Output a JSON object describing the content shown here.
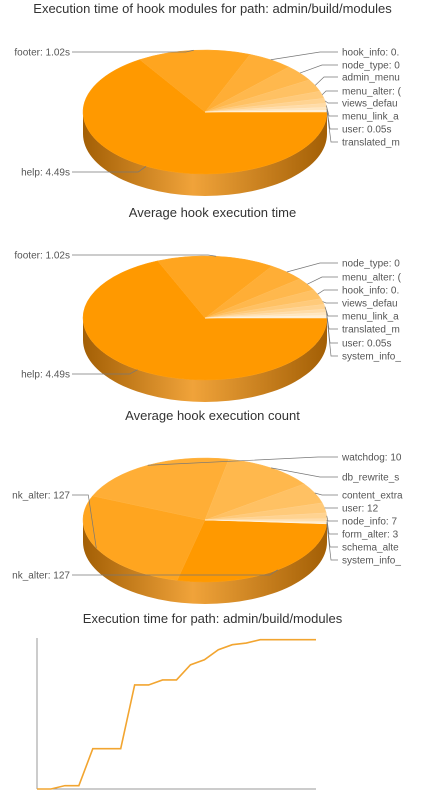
{
  "colors": {
    "base": "#ff9900",
    "side_dark": "#a35f05",
    "side_light": "#f0a33a",
    "line": "#f2a530",
    "axis": "#999999",
    "leader": "#777777"
  },
  "chart_data": [
    {
      "type": "pie",
      "title": "Execution time of hook modules for path: admin/build/modules",
      "slices": [
        {
          "label": "help: 4.49s",
          "value": 4.49
        },
        {
          "label": "footer: 1.02s",
          "value": 1.02
        },
        {
          "label": "hook_info: 0.",
          "value": 0.41
        },
        {
          "label": "node_type: 0",
          "value": 0.29
        },
        {
          "label": "admin_menu",
          "value": 0.22
        },
        {
          "label": "menu_alter: (",
          "value": 0.13
        },
        {
          "label": "views_defau",
          "value": 0.09
        },
        {
          "label": "menu_link_a",
          "value": 0.07
        },
        {
          "label": "user: 0.05s",
          "value": 0.05
        },
        {
          "label": "translated_m",
          "value": 0.03
        }
      ]
    },
    {
      "type": "pie",
      "title": "Average hook execution time",
      "slices": [
        {
          "label": "help: 4.49s",
          "value": 4.49
        },
        {
          "label": "footer: 1.02s",
          "value": 1.02
        },
        {
          "label": "node_type: 0",
          "value": 0.32
        },
        {
          "label": "menu_alter: (",
          "value": 0.22
        },
        {
          "label": "hook_info: 0.",
          "value": 0.16
        },
        {
          "label": "views_defau",
          "value": 0.1
        },
        {
          "label": "menu_link_a",
          "value": 0.08
        },
        {
          "label": "translated_m",
          "value": 0.06
        },
        {
          "label": "user: 0.05s",
          "value": 0.05
        },
        {
          "label": "system_info_",
          "value": 0.04
        }
      ]
    },
    {
      "type": "pie",
      "title": "Average hook execution count",
      "slices": [
        {
          "label": "nk_alter: 127",
          "value": 127
        },
        {
          "label": "nk_alter: 127",
          "value": 127
        },
        {
          "label": "watchdog: 10",
          "value": 100
        },
        {
          "label": "db_rewrite_s",
          "value": 55
        },
        {
          "label": "content_extra",
          "value": 25
        },
        {
          "label": "user: 12",
          "value": 12
        },
        {
          "label": "node_info: 7",
          "value": 7
        },
        {
          "label": "form_alter: 3",
          "value": 3
        },
        {
          "label": "schema_alte",
          "value": 2
        },
        {
          "label": "system_info_",
          "value": 1
        }
      ]
    },
    {
      "type": "line",
      "title": "Execution time for path: admin/build/modules",
      "xlabel": "",
      "ylabel": "",
      "x": [
        0,
        1,
        2,
        3,
        4,
        5,
        6,
        7,
        8,
        9,
        10,
        11,
        12,
        13,
        14,
        15,
        16,
        17,
        18,
        19,
        20
      ],
      "values": [
        0,
        0,
        0.2,
        0.2,
        2.4,
        2.4,
        2.4,
        6.2,
        6.2,
        6.5,
        6.5,
        7.4,
        7.7,
        8.3,
        8.6,
        8.7,
        8.9,
        8.9,
        8.9,
        8.9,
        8.9
      ],
      "ylim": [
        0,
        9
      ]
    }
  ]
}
